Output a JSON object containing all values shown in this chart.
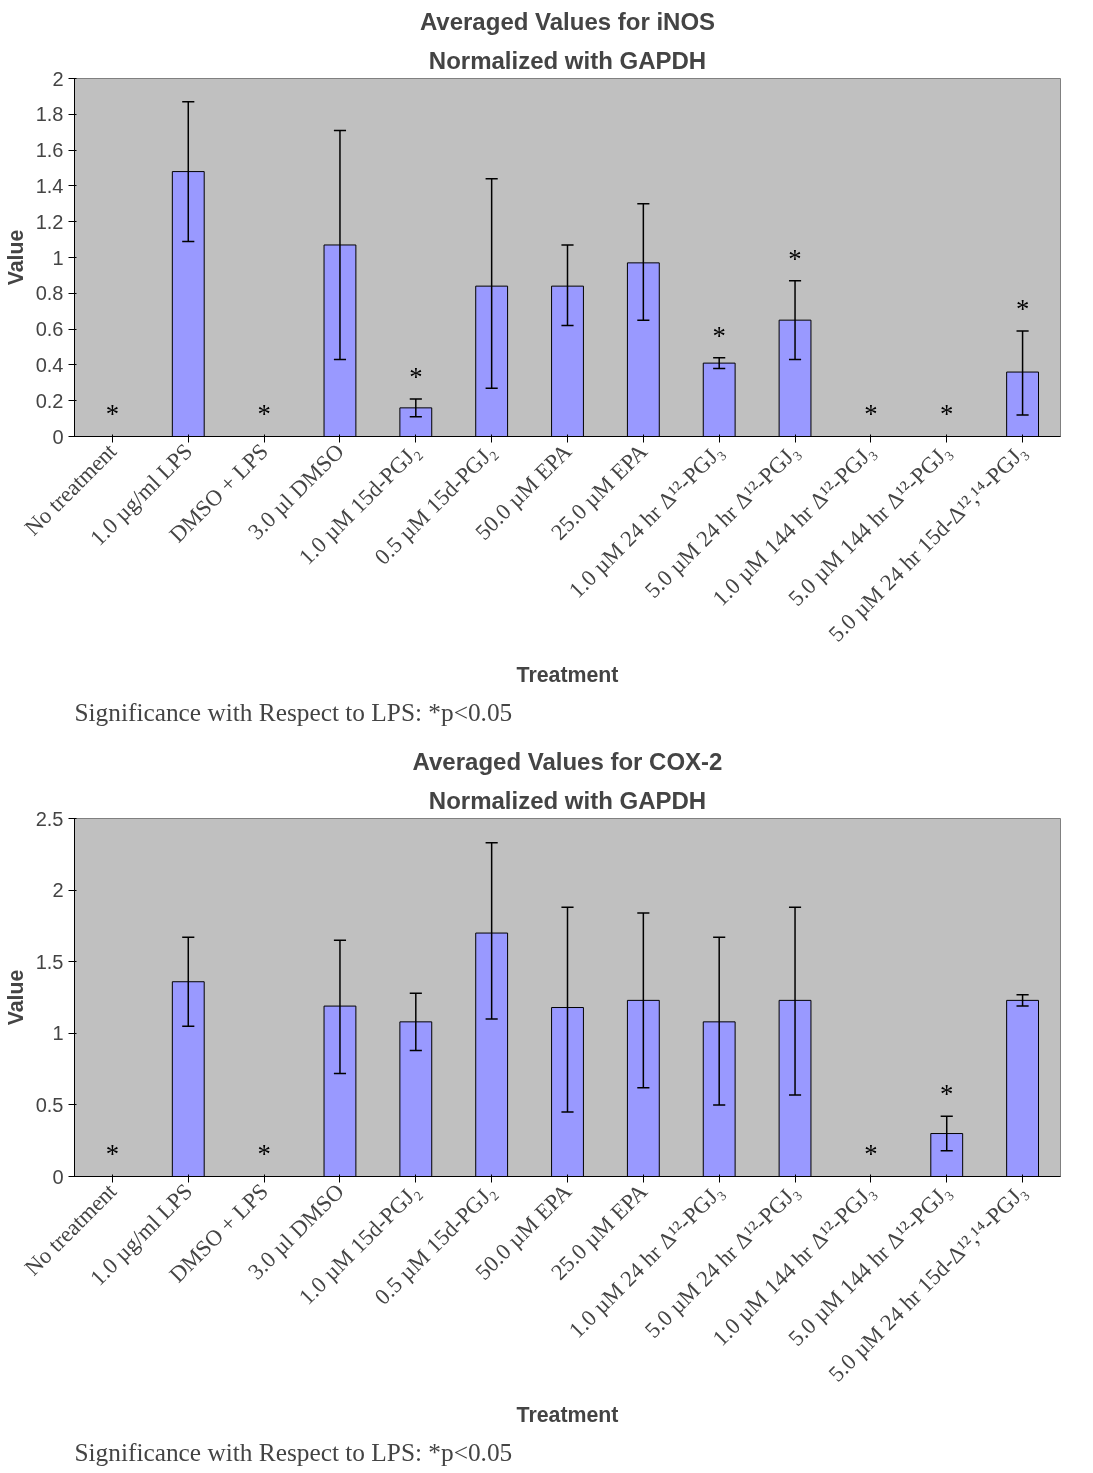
{
  "chart_data": [
    {
      "type": "bar",
      "title": "Averaged Values for iNOS",
      "subtitle": "Normalized with GAPDH",
      "xlabel": "Treatment",
      "ylabel": "Value",
      "categories": [
        "No treatment",
        "1.0 µg/ml LPS",
        "DMSO + LPS",
        "3.0 µl DMSO",
        "1.0 µM 15d-PGJ₂",
        "0.5 µM 15d-PGJ₂",
        "50.0 µM EPA",
        "25.0 µM EPA",
        "1.0 µM 24 hr Δ¹²-PGJ₃",
        "5.0 µM 24 hr Δ¹²-PGJ₃",
        "1.0 µM 144 hr Δ¹²-PGJ₃",
        "5.0 µM 144 hr Δ¹²-PGJ₃",
        "5.0 µM 24 hr 15d-Δ¹²,¹⁴-PGJ₃"
      ],
      "values": [
        0,
        1.48,
        0,
        1.07,
        0.16,
        0.84,
        0.84,
        0.97,
        0.41,
        0.65,
        0,
        0,
        0.36
      ],
      "errors": [
        null,
        [
          1.09,
          1.87
        ],
        null,
        [
          0.43,
          1.71
        ],
        [
          0.11,
          0.21
        ],
        [
          0.27,
          1.44
        ],
        [
          0.62,
          1.07
        ],
        [
          0.65,
          1.3
        ],
        [
          0.38,
          0.44
        ],
        [
          0.43,
          0.87
        ],
        null,
        null,
        [
          0.12,
          0.59
        ]
      ],
      "color": "#9999ff",
      "ylim": [
        0,
        2
      ],
      "yticks": [
        0,
        0.2,
        0.4,
        0.6,
        0.8,
        1,
        1.2,
        1.4,
        1.6,
        1.8,
        2
      ],
      "grid": false,
      "value_labels": [
        "*",
        null,
        "*",
        null,
        "*",
        null,
        null,
        null,
        "*",
        "*",
        "*",
        "*",
        "*"
      ],
      "annotations": [
        "Significance with Respect to LPS: *p<0.05"
      ]
    },
    {
      "type": "bar",
      "title": "Averaged Values for COX-2",
      "subtitle": "Normalized with GAPDH",
      "xlabel": "Treatment",
      "ylabel": "Value",
      "categories": [
        "No treatment",
        "1.0 µg/ml LPS",
        "DMSO + LPS",
        "3.0 µl DMSO",
        "1.0 µM 15d-PGJ₂",
        "0.5 µM 15d-PGJ₂",
        "50.0 µM EPA",
        "25.0 µM EPA",
        "1.0 µM 24 hr Δ¹²-PGJ₃",
        "5.0 µM 24 hr Δ¹²-PGJ₃",
        "1.0 µM 144 hr Δ¹²-PGJ₃",
        "5.0 µM 144 hr Δ¹²-PGJ₃",
        "5.0 µM 24 hr 15d-Δ¹²,¹⁴-PGJ₃"
      ],
      "values": [
        0,
        1.36,
        0,
        1.19,
        1.08,
        1.7,
        1.18,
        1.23,
        1.08,
        1.23,
        0,
        0.3,
        1.23
      ],
      "errors": [
        null,
        [
          1.05,
          1.67
        ],
        null,
        [
          0.72,
          1.65
        ],
        [
          0.88,
          1.28
        ],
        [
          1.1,
          2.33
        ],
        [
          0.45,
          1.88
        ],
        [
          0.62,
          1.84
        ],
        [
          0.5,
          1.67
        ],
        [
          0.57,
          1.88
        ],
        null,
        [
          0.18,
          0.42
        ],
        [
          1.19,
          1.27
        ]
      ],
      "color": "#9999ff",
      "ylim": [
        0,
        2.5
      ],
      "yticks": [
        0,
        0.5,
        1,
        1.5,
        2,
        2.5
      ],
      "grid": false,
      "value_labels": [
        "*",
        null,
        "*",
        null,
        null,
        null,
        null,
        null,
        null,
        null,
        "*",
        "*",
        null
      ],
      "annotations": [
        "Significance with Respect to LPS: *p<0.05"
      ]
    }
  ]
}
